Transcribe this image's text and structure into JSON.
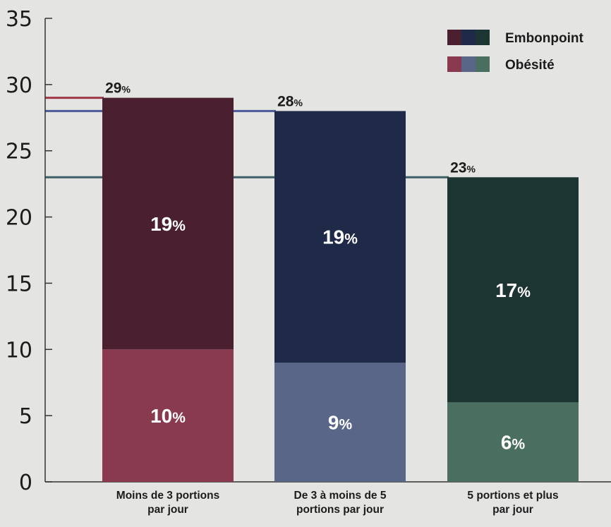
{
  "chart_data": {
    "type": "bar",
    "stacked": true,
    "categories": [
      [
        "Moins de 3 portions",
        "par jour"
      ],
      [
        "De 3 à moins de 5",
        "portions par jour"
      ],
      [
        "5 portions et plus",
        "par jour"
      ]
    ],
    "series": [
      {
        "name": "Obésité",
        "values": [
          10,
          9,
          6
        ],
        "labels": [
          "10%",
          "9%",
          "6%"
        ],
        "colors": [
          "#8a3a4e",
          "#5a6688",
          "#4a6e60"
        ]
      },
      {
        "name": "Embonpoint",
        "values": [
          19,
          19,
          17
        ],
        "labels": [
          "19%",
          "19%",
          "17%"
        ],
        "colors": [
          "#4a1f30",
          "#1f2a48",
          "#1d3532"
        ]
      }
    ],
    "totals": [
      29,
      28,
      23
    ],
    "total_labels": [
      "29%",
      "28%",
      "23%"
    ],
    "reference_line_colors": [
      "#a03848",
      "#4a5a98",
      "#3e5e68"
    ],
    "ylim": [
      0,
      35
    ],
    "yticks": [
      "0",
      "5",
      "10",
      "15",
      "20",
      "25",
      "30",
      "35"
    ],
    "legend_position": "top-right",
    "grid": false
  }
}
